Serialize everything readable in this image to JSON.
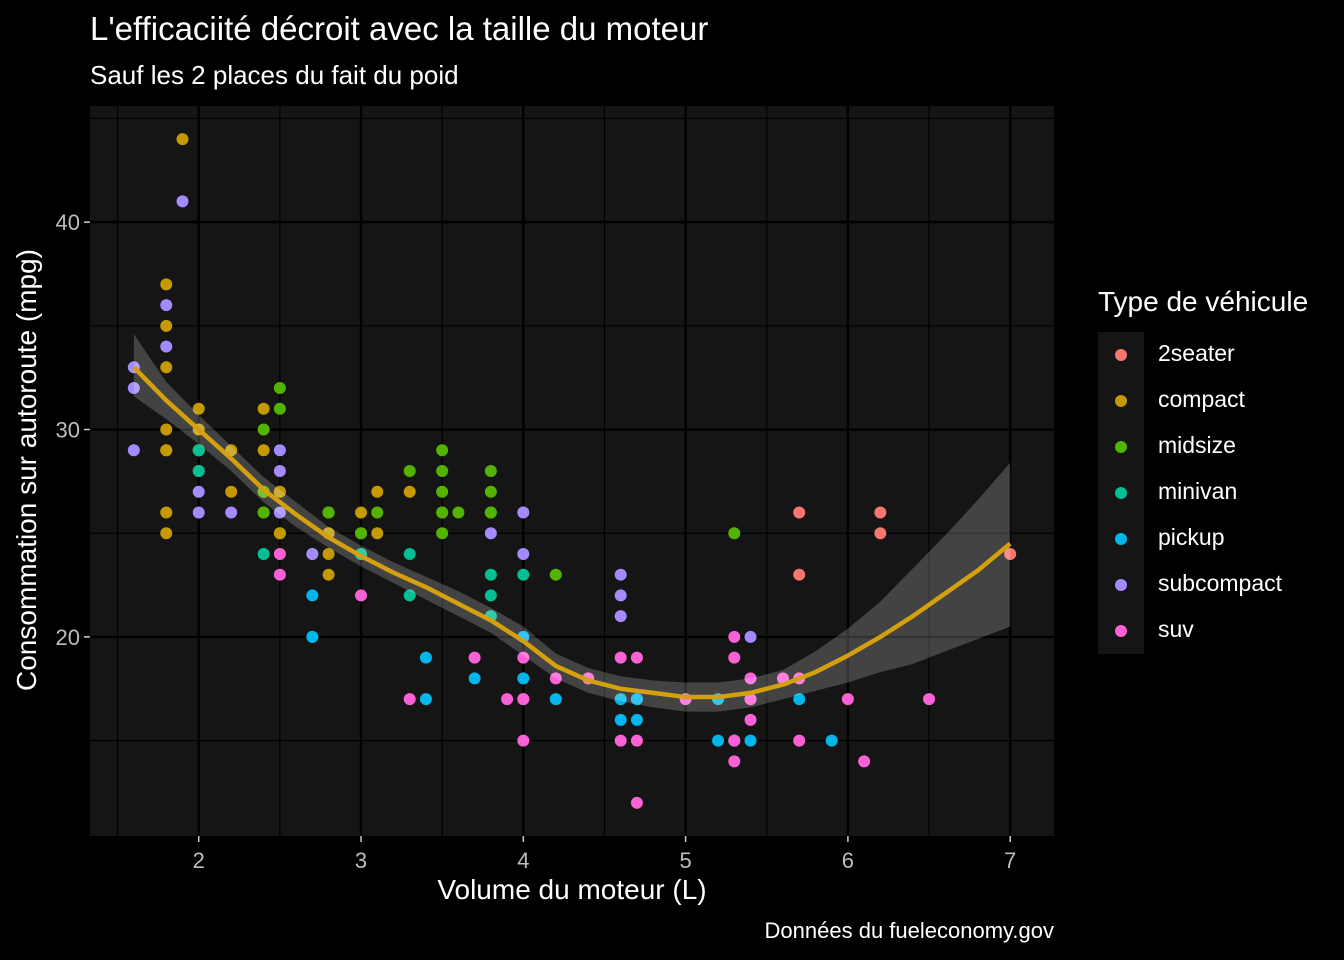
{
  "title": "L'efficaciité décroit avec la taille du moteur",
  "subtitle": "Sauf les 2 places du fait du poid",
  "caption": "Données du fueleconomy.gov",
  "colors": {
    "background": "#000000",
    "panel": "#151515",
    "grid": "#000000",
    "smooth_line": "#D4A00E",
    "ribbon": "#3A3A3A"
  },
  "chart_data": {
    "type": "scatter",
    "xlabel": "Volume du moteur (L)",
    "ylabel": "Consommation sur autoroute (mpg)",
    "xlim": [
      1.33,
      7.27
    ],
    "ylim": [
      10.4,
      45.6
    ],
    "x_ticks": [
      2,
      3,
      4,
      5,
      6,
      7
    ],
    "y_ticks": [
      20,
      30,
      40
    ],
    "grid": true,
    "legend_title": "Type de véhicule",
    "legend_position": "right",
    "series": [
      {
        "name": "2seater",
        "color": "#F8766D",
        "points": [
          [
            5.7,
            26
          ],
          [
            5.7,
            23
          ],
          [
            6.2,
            26
          ],
          [
            6.2,
            25
          ],
          [
            7.0,
            24
          ]
        ]
      },
      {
        "name": "compact",
        "color": "#C49A00",
        "points": [
          [
            1.8,
            29
          ],
          [
            1.8,
            29
          ],
          [
            2.0,
            31
          ],
          [
            2.0,
            30
          ],
          [
            2.8,
            26
          ],
          [
            2.8,
            26
          ],
          [
            3.1,
            27
          ],
          [
            1.8,
            26
          ],
          [
            1.8,
            25
          ],
          [
            2.0,
            28
          ],
          [
            2.0,
            29
          ],
          [
            2.8,
            25
          ],
          [
            2.8,
            25
          ],
          [
            3.1,
            25
          ],
          [
            2.2,
            27
          ],
          [
            2.2,
            29
          ],
          [
            2.4,
            31
          ],
          [
            2.4,
            29
          ],
          [
            3.0,
            26
          ],
          [
            2.5,
            25
          ],
          [
            2.5,
            27
          ],
          [
            2.5,
            25
          ],
          [
            1.8,
            37
          ],
          [
            1.8,
            35
          ],
          [
            1.8,
            33
          ],
          [
            1.8,
            30
          ],
          [
            2.0,
            29
          ],
          [
            2.4,
            27
          ],
          [
            3.3,
            27
          ],
          [
            2.8,
            23
          ],
          [
            2.8,
            24
          ],
          [
            1.9,
            44
          ],
          [
            2.5,
            27
          ]
        ]
      },
      {
        "name": "midsize",
        "color": "#53B400",
        "points": [
          [
            2.4,
            30
          ],
          [
            2.4,
            26
          ],
          [
            2.4,
            27
          ],
          [
            3.1,
            26
          ],
          [
            3.5,
            29
          ],
          [
            3.5,
            26
          ],
          [
            3.8,
            28
          ],
          [
            3.8,
            26
          ],
          [
            3.5,
            25
          ],
          [
            3.3,
            28
          ],
          [
            3.6,
            26
          ],
          [
            3.8,
            27
          ],
          [
            5.3,
            25
          ],
          [
            2.5,
            32
          ],
          [
            2.5,
            31
          ],
          [
            3.5,
            27
          ],
          [
            3.0,
            25
          ],
          [
            3.5,
            26
          ],
          [
            2.8,
            26
          ],
          [
            2.8,
            26
          ],
          [
            4.2,
            23
          ],
          [
            2.0,
            29
          ],
          [
            3.0,
            25
          ],
          [
            3.5,
            28
          ],
          [
            3.8,
            26
          ],
          [
            2.7,
            24
          ],
          [
            2.4,
            26
          ]
        ]
      },
      {
        "name": "minivan",
        "color": "#00C094",
        "points": [
          [
            2.4,
            24
          ],
          [
            3.0,
            24
          ],
          [
            3.3,
            22
          ],
          [
            3.3,
            24
          ],
          [
            3.8,
            22
          ],
          [
            3.8,
            21
          ],
          [
            3.8,
            23
          ],
          [
            4.0,
            23
          ],
          [
            2.0,
            28
          ],
          [
            2.0,
            29
          ]
        ]
      },
      {
        "name": "pickup",
        "color": "#00B6EB",
        "points": [
          [
            2.7,
            20
          ],
          [
            2.7,
            20
          ],
          [
            2.7,
            22
          ],
          [
            3.4,
            17
          ],
          [
            3.4,
            19
          ],
          [
            3.7,
            18
          ],
          [
            4.0,
            18
          ],
          [
            4.0,
            20
          ],
          [
            4.2,
            17
          ],
          [
            4.6,
            16
          ],
          [
            4.6,
            17
          ],
          [
            4.7,
            17
          ],
          [
            4.7,
            16
          ],
          [
            5.2,
            17
          ],
          [
            5.2,
            15
          ],
          [
            5.7,
            17
          ],
          [
            5.9,
            15
          ],
          [
            5.3,
            15
          ],
          [
            5.4,
            15
          ],
          [
            4.7,
            17
          ]
        ]
      },
      {
        "name": "subcompact",
        "color": "#A58AFF",
        "points": [
          [
            1.6,
            33
          ],
          [
            1.6,
            32
          ],
          [
            1.6,
            29
          ],
          [
            1.8,
            36
          ],
          [
            1.8,
            34
          ],
          [
            1.9,
            41
          ],
          [
            2.0,
            27
          ],
          [
            2.0,
            26
          ],
          [
            2.2,
            26
          ],
          [
            2.5,
            29
          ],
          [
            2.5,
            28
          ],
          [
            2.5,
            26
          ],
          [
            2.7,
            24
          ],
          [
            3.8,
            25
          ],
          [
            4.0,
            26
          ],
          [
            4.0,
            24
          ],
          [
            4.6,
            23
          ],
          [
            4.6,
            22
          ],
          [
            4.6,
            21
          ],
          [
            5.4,
            20
          ],
          [
            5.4,
            17
          ]
        ]
      },
      {
        "name": "suv",
        "color": "#FB61D7",
        "points": [
          [
            2.5,
            24
          ],
          [
            2.5,
            23
          ],
          [
            3.0,
            22
          ],
          [
            3.3,
            17
          ],
          [
            3.7,
            19
          ],
          [
            3.9,
            17
          ],
          [
            4.0,
            19
          ],
          [
            4.0,
            17
          ],
          [
            4.0,
            15
          ],
          [
            4.2,
            18
          ],
          [
            4.4,
            18
          ],
          [
            4.6,
            19
          ],
          [
            4.6,
            15
          ],
          [
            4.7,
            19
          ],
          [
            4.7,
            15
          ],
          [
            4.7,
            12
          ],
          [
            5.0,
            17
          ],
          [
            5.3,
            20
          ],
          [
            5.3,
            19
          ],
          [
            5.3,
            15
          ],
          [
            5.3,
            14
          ],
          [
            5.4,
            18
          ],
          [
            5.4,
            16
          ],
          [
            5.6,
            18
          ],
          [
            5.7,
            18
          ],
          [
            5.7,
            15
          ],
          [
            6.0,
            17
          ],
          [
            6.1,
            14
          ],
          [
            6.5,
            17
          ],
          [
            4.0,
            17
          ],
          [
            5.4,
            17
          ]
        ]
      }
    ],
    "smooth": {
      "color": "#D4A00E",
      "x": [
        1.6,
        1.8,
        2.0,
        2.2,
        2.4,
        2.6,
        2.8,
        3.0,
        3.2,
        3.4,
        3.6,
        3.8,
        4.0,
        4.2,
        4.4,
        4.6,
        4.8,
        5.0,
        5.2,
        5.4,
        5.6,
        5.8,
        6.0,
        6.2,
        6.4,
        6.6,
        6.8,
        7.0
      ],
      "y": [
        33.0,
        31.4,
        30.0,
        28.6,
        27.1,
        25.9,
        24.8,
        23.9,
        23.1,
        22.4,
        21.6,
        20.8,
        19.8,
        18.6,
        17.9,
        17.5,
        17.3,
        17.1,
        17.1,
        17.3,
        17.7,
        18.3,
        19.1,
        20.0,
        21.0,
        22.1,
        23.2,
        24.5
      ],
      "lower": [
        31.6,
        30.5,
        29.3,
        28.0,
        26.5,
        25.3,
        24.3,
        23.4,
        22.6,
        21.8,
        21.0,
        20.2,
        19.1,
        18.0,
        17.3,
        16.9,
        16.6,
        16.4,
        16.4,
        16.6,
        17.0,
        17.4,
        17.8,
        18.3,
        18.7,
        19.3,
        19.9,
        20.5
      ],
      "upper": [
        34.6,
        32.3,
        30.7,
        29.2,
        27.7,
        26.5,
        25.3,
        24.4,
        23.6,
        22.9,
        22.2,
        21.4,
        20.5,
        19.2,
        18.5,
        18.1,
        17.9,
        17.8,
        17.8,
        18.0,
        18.4,
        19.3,
        20.4,
        21.7,
        23.3,
        24.9,
        26.6,
        28.4
      ]
    }
  }
}
